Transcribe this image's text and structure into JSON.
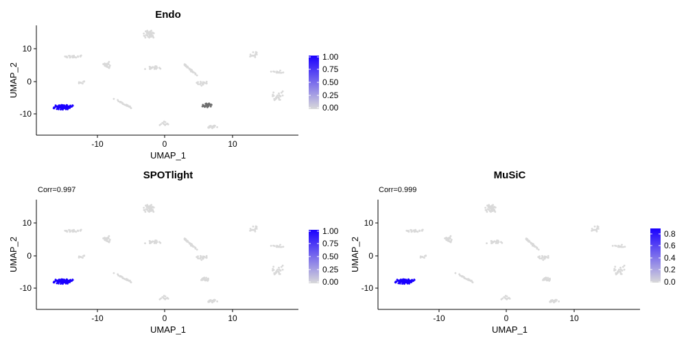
{
  "figure": {
    "panels": [
      {
        "title": "Endo",
        "subtitle": "",
        "xlabel": "UMAP_1",
        "ylabel": "UMAP_2",
        "x_ticks": [
          -10,
          0,
          10
        ],
        "y_ticks": [
          10,
          0,
          -10
        ],
        "legend_ticks": [
          "1.00",
          "0.75",
          "0.50",
          "0.25",
          "0.00"
        ]
      },
      {
        "title": "SPOTlight",
        "subtitle": "Corr=0.997",
        "xlabel": "UMAP_1",
        "ylabel": "UMAP_2",
        "x_ticks": [
          -10,
          0,
          10
        ],
        "y_ticks": [
          10,
          0,
          -10
        ],
        "legend_ticks": [
          "1.00",
          "0.75",
          "0.50",
          "0.25",
          "0.00"
        ]
      },
      {
        "title": "MuSiC",
        "subtitle": "Corr=0.999",
        "xlabel": "UMAP_1",
        "ylabel": "UMAP_2",
        "x_ticks": [
          -10,
          0,
          10
        ],
        "y_ticks": [
          10,
          0,
          -10
        ],
        "legend_ticks": [
          "0.8",
          "0.6",
          "0.4",
          "0.2",
          "0.0"
        ]
      }
    ]
  },
  "colors": {
    "low": "#d9d9d9",
    "high": "#1a00ff",
    "na": "#6e6e6e",
    "axis": "#000000"
  },
  "chart_data": [
    {
      "type": "scatter",
      "title": "Endo",
      "xlabel": "UMAP_1",
      "ylabel": "UMAP_2",
      "xlim": [
        -19,
        20
      ],
      "ylim": [
        -16.5,
        17.5
      ],
      "color_scale": {
        "min": 0,
        "max": 1,
        "ticks": [
          0,
          0.25,
          0.5,
          0.75,
          1
        ]
      },
      "grid": false,
      "legend": "right",
      "clusters": [
        {
          "center": [
            -15.0,
            -7.8
          ],
          "spread": [
            0.8,
            0.5
          ],
          "n": 130,
          "value": 1.0
        },
        {
          "center": [
            -2.2,
            14.8
          ],
          "spread": [
            0.6,
            0.9
          ],
          "n": 45,
          "value": 0.0
        },
        {
          "center": [
            -13.5,
            7.8
          ],
          "spread": [
            0.9,
            0.3
          ],
          "n": 25,
          "value": 0.0
        },
        {
          "center": [
            -8.5,
            5.3
          ],
          "spread": [
            0.4,
            0.6
          ],
          "n": 25,
          "value": 0.0
        },
        {
          "center": [
            -1.8,
            4.4
          ],
          "spread": [
            0.8,
            0.3
          ],
          "n": 25,
          "value": 0.0
        },
        {
          "center": [
            -12.2,
            -0.3
          ],
          "spread": [
            0.3,
            0.3
          ],
          "n": 8,
          "value": 0.0
        },
        {
          "center": [
            -6.0,
            -6.8
          ],
          "spread": [
            0.9,
            1.0
          ],
          "n": 25,
          "value": 0.0,
          "tilt": -1
        },
        {
          "center": [
            3.8,
            4.0
          ],
          "spread": [
            0.7,
            1.4
          ],
          "n": 30,
          "value": 0.0,
          "tilt": -1
        },
        {
          "center": [
            5.6,
            -0.5
          ],
          "spread": [
            0.6,
            0.5
          ],
          "n": 18,
          "value": 0.0
        },
        {
          "center": [
            13.3,
            8.4
          ],
          "spread": [
            0.5,
            0.5
          ],
          "n": 15,
          "value": 0.0
        },
        {
          "center": [
            16.8,
            3.0
          ],
          "spread": [
            0.6,
            0.3
          ],
          "n": 15,
          "value": 0.0
        },
        {
          "center": [
            16.7,
            -4.2
          ],
          "spread": [
            0.7,
            1.3
          ],
          "n": 25,
          "value": 0.0
        },
        {
          "center": [
            6.4,
            -7.2
          ],
          "spread": [
            0.4,
            0.4
          ],
          "n": 30,
          "value": null
        },
        {
          "center": [
            0.0,
            -12.7
          ],
          "spread": [
            0.4,
            0.6
          ],
          "n": 12,
          "value": 0.0
        },
        {
          "center": [
            7.4,
            -13.9
          ],
          "spread": [
            0.6,
            0.3
          ],
          "n": 20,
          "value": 0.0
        }
      ]
    },
    {
      "type": "scatter",
      "title": "SPOTlight",
      "subtitle": "Corr=0.997",
      "xlabel": "UMAP_1",
      "ylabel": "UMAP_2",
      "xlim": [
        -19,
        20
      ],
      "ylim": [
        -16.5,
        17.5
      ],
      "color_scale": {
        "min": 0,
        "max": 1,
        "ticks": [
          0,
          0.25,
          0.5,
          0.75,
          1
        ]
      },
      "grid": false,
      "legend": "right",
      "clusters": [
        {
          "center": [
            -15.0,
            -7.8
          ],
          "spread": [
            0.8,
            0.5
          ],
          "n": 130,
          "value": 1.0
        },
        {
          "center": [
            -2.2,
            14.8
          ],
          "spread": [
            0.6,
            0.9
          ],
          "n": 45,
          "value": 0.0
        },
        {
          "center": [
            -13.5,
            7.8
          ],
          "spread": [
            0.9,
            0.3
          ],
          "n": 25,
          "value": 0.0
        },
        {
          "center": [
            -8.5,
            5.3
          ],
          "spread": [
            0.4,
            0.6
          ],
          "n": 25,
          "value": 0.0
        },
        {
          "center": [
            -1.8,
            4.4
          ],
          "spread": [
            0.8,
            0.3
          ],
          "n": 25,
          "value": 0.0
        },
        {
          "center": [
            -12.2,
            -0.3
          ],
          "spread": [
            0.3,
            0.3
          ],
          "n": 8,
          "value": 0.0
        },
        {
          "center": [
            -6.0,
            -6.8
          ],
          "spread": [
            0.9,
            1.0
          ],
          "n": 25,
          "value": 0.0,
          "tilt": -1
        },
        {
          "center": [
            3.8,
            4.0
          ],
          "spread": [
            0.7,
            1.4
          ],
          "n": 30,
          "value": 0.0,
          "tilt": -1
        },
        {
          "center": [
            5.6,
            -0.5
          ],
          "spread": [
            0.6,
            0.5
          ],
          "n": 18,
          "value": 0.0
        },
        {
          "center": [
            13.3,
            8.4
          ],
          "spread": [
            0.5,
            0.5
          ],
          "n": 15,
          "value": 0.0
        },
        {
          "center": [
            16.8,
            3.0
          ],
          "spread": [
            0.6,
            0.3
          ],
          "n": 15,
          "value": 0.0
        },
        {
          "center": [
            16.7,
            -4.2
          ],
          "spread": [
            0.7,
            1.3
          ],
          "n": 25,
          "value": 0.0
        },
        {
          "center": [
            6.0,
            -7.2
          ],
          "spread": [
            0.4,
            0.4
          ],
          "n": 25,
          "value": 0.0
        },
        {
          "center": [
            0.0,
            -12.7
          ],
          "spread": [
            0.4,
            0.6
          ],
          "n": 12,
          "value": 0.0
        },
        {
          "center": [
            7.4,
            -13.9
          ],
          "spread": [
            0.6,
            0.3
          ],
          "n": 20,
          "value": 0.0
        }
      ]
    },
    {
      "type": "scatter",
      "title": "MuSiC",
      "subtitle": "Corr=0.999",
      "xlabel": "UMAP_1",
      "ylabel": "UMAP_2",
      "xlim": [
        -19,
        20
      ],
      "ylim": [
        -16.5,
        17.5
      ],
      "color_scale": {
        "min": 0,
        "max": 0.87,
        "ticks": [
          0,
          0.2,
          0.4,
          0.6,
          0.8
        ]
      },
      "grid": false,
      "legend": "right",
      "clusters": [
        {
          "center": [
            -15.0,
            -7.8
          ],
          "spread": [
            0.8,
            0.5
          ],
          "n": 130,
          "value": 0.87
        },
        {
          "center": [
            -2.2,
            14.8
          ],
          "spread": [
            0.6,
            0.9
          ],
          "n": 45,
          "value": 0.0
        },
        {
          "center": [
            -13.5,
            7.8
          ],
          "spread": [
            0.9,
            0.3
          ],
          "n": 25,
          "value": 0.0
        },
        {
          "center": [
            -8.5,
            5.3
          ],
          "spread": [
            0.4,
            0.6
          ],
          "n": 25,
          "value": 0.0
        },
        {
          "center": [
            -1.8,
            4.4
          ],
          "spread": [
            0.8,
            0.3
          ],
          "n": 25,
          "value": 0.0
        },
        {
          "center": [
            -12.2,
            -0.3
          ],
          "spread": [
            0.3,
            0.3
          ],
          "n": 8,
          "value": 0.0
        },
        {
          "center": [
            -6.0,
            -6.8
          ],
          "spread": [
            0.9,
            1.0
          ],
          "n": 25,
          "value": 0.0,
          "tilt": -1
        },
        {
          "center": [
            3.8,
            4.0
          ],
          "spread": [
            0.7,
            1.4
          ],
          "n": 30,
          "value": 0.0,
          "tilt": -1
        },
        {
          "center": [
            5.6,
            -0.5
          ],
          "spread": [
            0.6,
            0.5
          ],
          "n": 18,
          "value": 0.0
        },
        {
          "center": [
            13.3,
            8.4
          ],
          "spread": [
            0.5,
            0.5
          ],
          "n": 15,
          "value": 0.0
        },
        {
          "center": [
            16.8,
            3.0
          ],
          "spread": [
            0.6,
            0.3
          ],
          "n": 15,
          "value": 0.0
        },
        {
          "center": [
            16.7,
            -4.2
          ],
          "spread": [
            0.7,
            1.3
          ],
          "n": 25,
          "value": 0.0
        },
        {
          "center": [
            6.0,
            -7.2
          ],
          "spread": [
            0.4,
            0.4
          ],
          "n": 25,
          "value": 0.0
        },
        {
          "center": [
            0.0,
            -12.7
          ],
          "spread": [
            0.4,
            0.6
          ],
          "n": 12,
          "value": 0.0
        },
        {
          "center": [
            7.4,
            -13.9
          ],
          "spread": [
            0.6,
            0.3
          ],
          "n": 20,
          "value": 0.0
        }
      ]
    }
  ]
}
